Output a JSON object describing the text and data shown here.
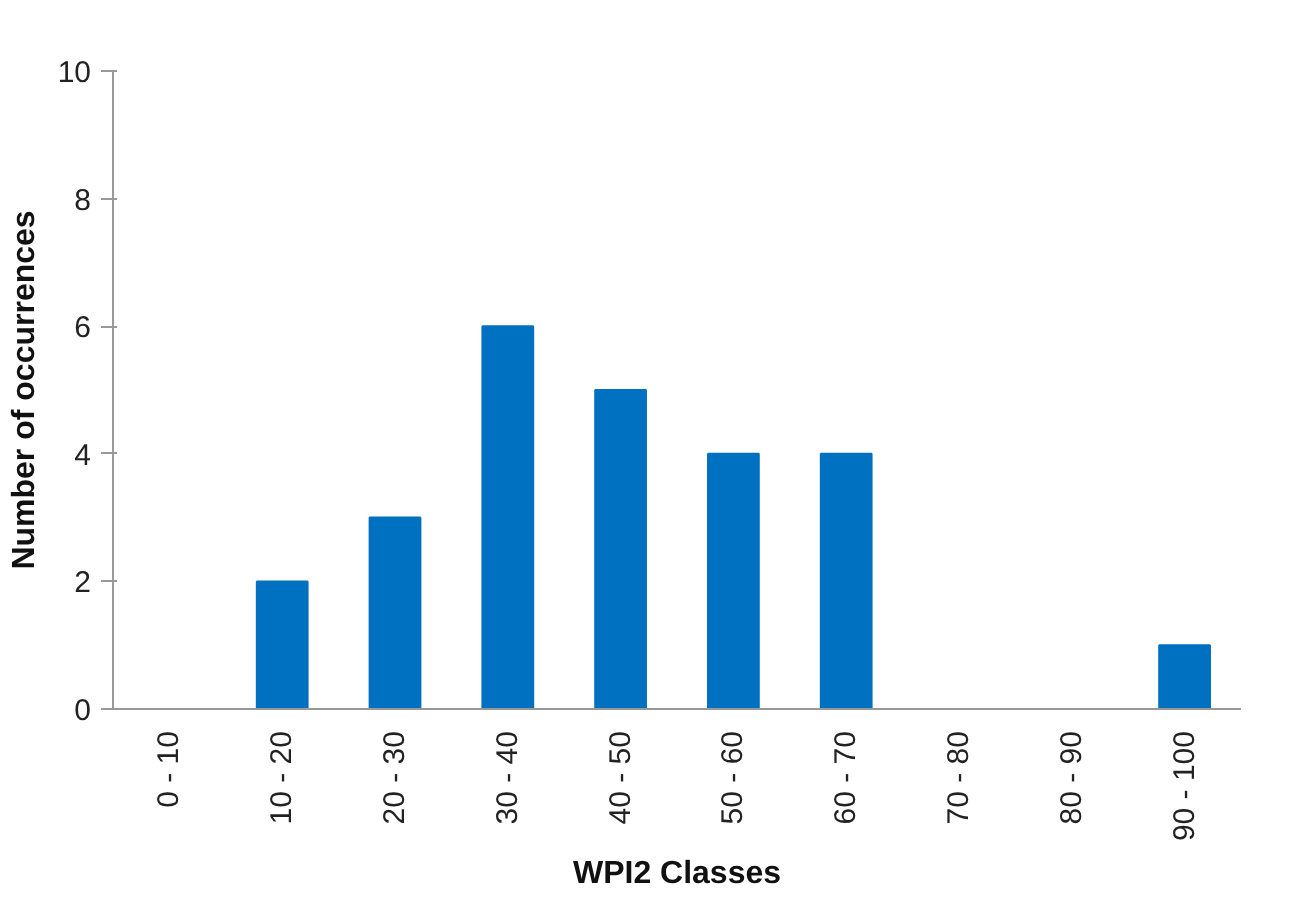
{
  "chart_data": {
    "type": "bar",
    "xlabel": "WPI2 Classes",
    "ylabel": "Number of occurrences",
    "categories": [
      "0 - 10",
      "10 - 20",
      "20 - 30",
      "30 - 40",
      "40 - 50",
      "50 - 60",
      "60 - 70",
      "70 - 80",
      "80 - 90",
      "90 - 100"
    ],
    "values": [
      0,
      2,
      3,
      6,
      5,
      4,
      4,
      0,
      0,
      1
    ],
    "color": "#0070c0",
    "ylim": [
      0,
      10
    ],
    "yticks": [
      0,
      2,
      4,
      6,
      8,
      10
    ],
    "grid": false
  }
}
